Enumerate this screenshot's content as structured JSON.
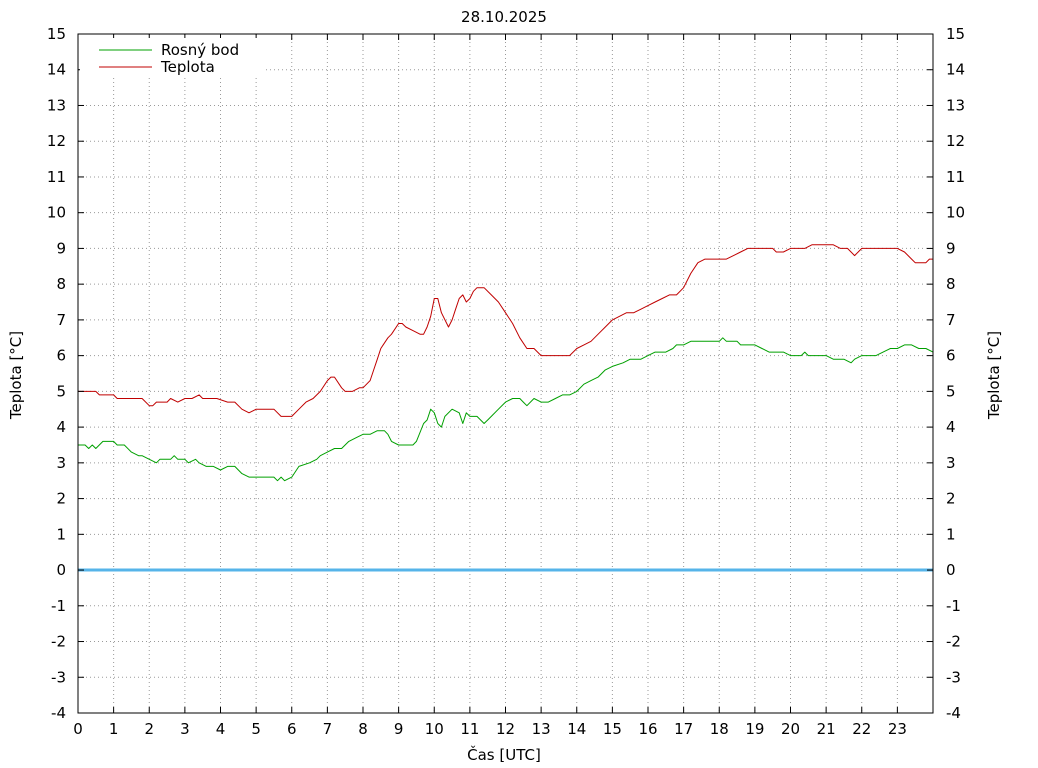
{
  "chart_data": {
    "type": "line",
    "title": "28.10.2025",
    "xlabel": "Čas [UTC]",
    "ylabel_left": "Teplota [°C]",
    "ylabel_right": "Teplota [°C]",
    "xlim": [
      0,
      24
    ],
    "ylim": [
      -4,
      15
    ],
    "x_ticks": [
      0,
      1,
      2,
      3,
      4,
      5,
      6,
      7,
      8,
      9,
      10,
      11,
      12,
      13,
      14,
      15,
      16,
      17,
      18,
      19,
      20,
      21,
      22,
      23
    ],
    "y_ticks": [
      -4,
      -3,
      -2,
      -1,
      0,
      1,
      2,
      3,
      4,
      5,
      6,
      7,
      8,
      9,
      10,
      11,
      12,
      13,
      14,
      15
    ],
    "grid": true,
    "legend_position": "top-left",
    "zero_line": {
      "y": 0,
      "color": "#56b4e9"
    },
    "series": [
      {
        "name": "Rosný bod",
        "color": "#00a000",
        "points": [
          [
            0,
            3.5
          ],
          [
            0.2,
            3.5
          ],
          [
            0.3,
            3.4
          ],
          [
            0.4,
            3.5
          ],
          [
            0.5,
            3.4
          ],
          [
            0.7,
            3.6
          ],
          [
            1.0,
            3.6
          ],
          [
            1.1,
            3.5
          ],
          [
            1.3,
            3.5
          ],
          [
            1.5,
            3.3
          ],
          [
            1.7,
            3.2
          ],
          [
            1.8,
            3.2
          ],
          [
            2.0,
            3.1
          ],
          [
            2.2,
            3.0
          ],
          [
            2.3,
            3.1
          ],
          [
            2.6,
            3.1
          ],
          [
            2.7,
            3.2
          ],
          [
            2.8,
            3.1
          ],
          [
            3.0,
            3.1
          ],
          [
            3.1,
            3.0
          ],
          [
            3.3,
            3.1
          ],
          [
            3.4,
            3.0
          ],
          [
            3.6,
            2.9
          ],
          [
            3.8,
            2.9
          ],
          [
            4.0,
            2.8
          ],
          [
            4.2,
            2.9
          ],
          [
            4.4,
            2.9
          ],
          [
            4.6,
            2.7
          ],
          [
            4.8,
            2.6
          ],
          [
            5.2,
            2.6
          ],
          [
            5.5,
            2.6
          ],
          [
            5.6,
            2.5
          ],
          [
            5.7,
            2.6
          ],
          [
            5.8,
            2.5
          ],
          [
            6.0,
            2.6
          ],
          [
            6.2,
            2.9
          ],
          [
            6.5,
            3.0
          ],
          [
            6.7,
            3.1
          ],
          [
            6.8,
            3.2
          ],
          [
            7.0,
            3.3
          ],
          [
            7.2,
            3.4
          ],
          [
            7.4,
            3.4
          ],
          [
            7.6,
            3.6
          ],
          [
            7.8,
            3.7
          ],
          [
            8.0,
            3.8
          ],
          [
            8.2,
            3.8
          ],
          [
            8.4,
            3.9
          ],
          [
            8.6,
            3.9
          ],
          [
            8.7,
            3.8
          ],
          [
            8.8,
            3.6
          ],
          [
            9.0,
            3.5
          ],
          [
            9.2,
            3.5
          ],
          [
            9.4,
            3.5
          ],
          [
            9.5,
            3.6
          ],
          [
            9.7,
            4.1
          ],
          [
            9.8,
            4.2
          ],
          [
            9.9,
            4.5
          ],
          [
            10.0,
            4.4
          ],
          [
            10.1,
            4.1
          ],
          [
            10.2,
            4.0
          ],
          [
            10.3,
            4.3
          ],
          [
            10.5,
            4.5
          ],
          [
            10.7,
            4.4
          ],
          [
            10.8,
            4.1
          ],
          [
            10.9,
            4.4
          ],
          [
            11.0,
            4.3
          ],
          [
            11.2,
            4.3
          ],
          [
            11.4,
            4.1
          ],
          [
            11.5,
            4.2
          ],
          [
            11.6,
            4.3
          ],
          [
            11.8,
            4.5
          ],
          [
            12.0,
            4.7
          ],
          [
            12.2,
            4.8
          ],
          [
            12.4,
            4.8
          ],
          [
            12.5,
            4.7
          ],
          [
            12.6,
            4.6
          ],
          [
            12.8,
            4.8
          ],
          [
            13.0,
            4.7
          ],
          [
            13.2,
            4.7
          ],
          [
            13.4,
            4.8
          ],
          [
            13.6,
            4.9
          ],
          [
            13.8,
            4.9
          ],
          [
            14.0,
            5.0
          ],
          [
            14.2,
            5.2
          ],
          [
            14.4,
            5.3
          ],
          [
            14.6,
            5.4
          ],
          [
            14.8,
            5.6
          ],
          [
            15.0,
            5.7
          ],
          [
            15.3,
            5.8
          ],
          [
            15.5,
            5.9
          ],
          [
            15.8,
            5.9
          ],
          [
            16.0,
            6.0
          ],
          [
            16.2,
            6.1
          ],
          [
            16.5,
            6.1
          ],
          [
            16.7,
            6.2
          ],
          [
            16.8,
            6.3
          ],
          [
            17.0,
            6.3
          ],
          [
            17.2,
            6.4
          ],
          [
            17.5,
            6.4
          ],
          [
            18.0,
            6.4
          ],
          [
            18.1,
            6.5
          ],
          [
            18.2,
            6.4
          ],
          [
            18.5,
            6.4
          ],
          [
            18.6,
            6.3
          ],
          [
            18.8,
            6.3
          ],
          [
            19.0,
            6.3
          ],
          [
            19.2,
            6.2
          ],
          [
            19.4,
            6.1
          ],
          [
            19.8,
            6.1
          ],
          [
            20.0,
            6.0
          ],
          [
            20.3,
            6.0
          ],
          [
            20.4,
            6.1
          ],
          [
            20.5,
            6.0
          ],
          [
            20.8,
            6.0
          ],
          [
            21.0,
            6.0
          ],
          [
            21.2,
            5.9
          ],
          [
            21.5,
            5.9
          ],
          [
            21.7,
            5.8
          ],
          [
            21.8,
            5.9
          ],
          [
            22.0,
            6.0
          ],
          [
            22.2,
            6.0
          ],
          [
            22.4,
            6.0
          ],
          [
            22.6,
            6.1
          ],
          [
            22.8,
            6.2
          ],
          [
            23.0,
            6.2
          ],
          [
            23.2,
            6.3
          ],
          [
            23.4,
            6.3
          ],
          [
            23.6,
            6.2
          ],
          [
            23.8,
            6.2
          ],
          [
            24.0,
            6.1
          ]
        ]
      },
      {
        "name": "Teplota",
        "color": "#c00000",
        "points": [
          [
            0,
            5.0
          ],
          [
            0.5,
            5.0
          ],
          [
            0.6,
            4.9
          ],
          [
            1.0,
            4.9
          ],
          [
            1.1,
            4.8
          ],
          [
            1.8,
            4.8
          ],
          [
            2.0,
            4.6
          ],
          [
            2.1,
            4.6
          ],
          [
            2.2,
            4.7
          ],
          [
            2.5,
            4.7
          ],
          [
            2.6,
            4.8
          ],
          [
            2.8,
            4.7
          ],
          [
            3.0,
            4.8
          ],
          [
            3.2,
            4.8
          ],
          [
            3.4,
            4.9
          ],
          [
            3.5,
            4.8
          ],
          [
            3.6,
            4.8
          ],
          [
            3.9,
            4.8
          ],
          [
            4.2,
            4.7
          ],
          [
            4.4,
            4.7
          ],
          [
            4.6,
            4.5
          ],
          [
            4.8,
            4.4
          ],
          [
            5.0,
            4.5
          ],
          [
            5.5,
            4.5
          ],
          [
            5.7,
            4.3
          ],
          [
            6.0,
            4.3
          ],
          [
            6.2,
            4.5
          ],
          [
            6.4,
            4.7
          ],
          [
            6.6,
            4.8
          ],
          [
            6.8,
            5.0
          ],
          [
            7.0,
            5.3
          ],
          [
            7.1,
            5.4
          ],
          [
            7.2,
            5.4
          ],
          [
            7.4,
            5.1
          ],
          [
            7.5,
            5.0
          ],
          [
            7.7,
            5.0
          ],
          [
            7.9,
            5.1
          ],
          [
            8.0,
            5.1
          ],
          [
            8.2,
            5.3
          ],
          [
            8.3,
            5.6
          ],
          [
            8.4,
            5.9
          ],
          [
            8.5,
            6.2
          ],
          [
            8.7,
            6.5
          ],
          [
            8.8,
            6.6
          ],
          [
            9.0,
            6.9
          ],
          [
            9.1,
            6.9
          ],
          [
            9.2,
            6.8
          ],
          [
            9.4,
            6.7
          ],
          [
            9.6,
            6.6
          ],
          [
            9.7,
            6.6
          ],
          [
            9.8,
            6.8
          ],
          [
            9.9,
            7.1
          ],
          [
            10.0,
            7.6
          ],
          [
            10.1,
            7.6
          ],
          [
            10.2,
            7.2
          ],
          [
            10.4,
            6.8
          ],
          [
            10.5,
            7.0
          ],
          [
            10.6,
            7.3
          ],
          [
            10.7,
            7.6
          ],
          [
            10.8,
            7.7
          ],
          [
            10.9,
            7.5
          ],
          [
            11.0,
            7.6
          ],
          [
            11.1,
            7.8
          ],
          [
            11.2,
            7.9
          ],
          [
            11.4,
            7.9
          ],
          [
            11.6,
            7.7
          ],
          [
            11.8,
            7.5
          ],
          [
            12.0,
            7.2
          ],
          [
            12.2,
            6.9
          ],
          [
            12.4,
            6.5
          ],
          [
            12.6,
            6.2
          ],
          [
            12.8,
            6.2
          ],
          [
            13.0,
            6.0
          ],
          [
            13.2,
            6.0
          ],
          [
            13.4,
            6.0
          ],
          [
            13.6,
            6.0
          ],
          [
            13.8,
            6.0
          ],
          [
            14.0,
            6.2
          ],
          [
            14.2,
            6.3
          ],
          [
            14.4,
            6.4
          ],
          [
            14.6,
            6.6
          ],
          [
            14.8,
            6.8
          ],
          [
            15.0,
            7.0
          ],
          [
            15.2,
            7.1
          ],
          [
            15.4,
            7.2
          ],
          [
            15.6,
            7.2
          ],
          [
            15.8,
            7.3
          ],
          [
            16.0,
            7.4
          ],
          [
            16.2,
            7.5
          ],
          [
            16.4,
            7.6
          ],
          [
            16.6,
            7.7
          ],
          [
            16.8,
            7.7
          ],
          [
            17.0,
            7.9
          ],
          [
            17.2,
            8.3
          ],
          [
            17.4,
            8.6
          ],
          [
            17.6,
            8.7
          ],
          [
            18.0,
            8.7
          ],
          [
            18.2,
            8.7
          ],
          [
            18.4,
            8.8
          ],
          [
            18.6,
            8.9
          ],
          [
            18.8,
            9.0
          ],
          [
            19.2,
            9.0
          ],
          [
            19.5,
            9.0
          ],
          [
            19.6,
            8.9
          ],
          [
            19.8,
            8.9
          ],
          [
            20.0,
            9.0
          ],
          [
            20.4,
            9.0
          ],
          [
            20.6,
            9.1
          ],
          [
            21.2,
            9.1
          ],
          [
            21.4,
            9.0
          ],
          [
            21.6,
            9.0
          ],
          [
            21.8,
            8.8
          ],
          [
            22.0,
            9.0
          ],
          [
            22.4,
            9.0
          ],
          [
            23.0,
            9.0
          ],
          [
            23.2,
            8.9
          ],
          [
            23.4,
            8.7
          ],
          [
            23.5,
            8.6
          ],
          [
            23.8,
            8.6
          ],
          [
            23.9,
            8.7
          ],
          [
            24.0,
            8.7
          ]
        ]
      }
    ]
  }
}
